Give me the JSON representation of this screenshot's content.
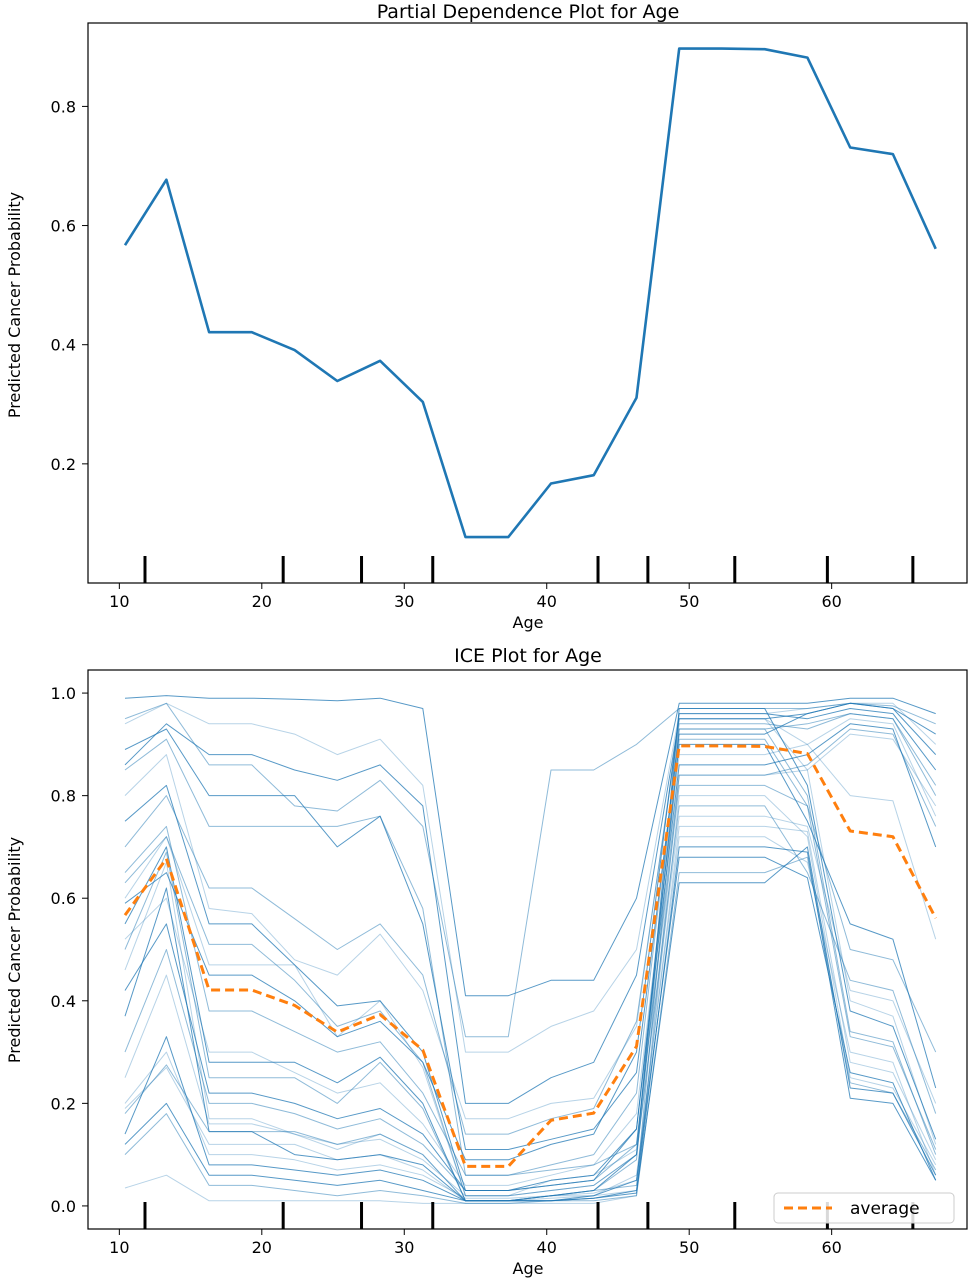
{
  "chart_data": [
    {
      "type": "line",
      "title": "Partial Dependence Plot for Age",
      "xlabel": "Age",
      "ylabel": "Predicted Cancer Probability",
      "xlim": [
        7.8,
        69.5
      ],
      "ylim": [
        0.0,
        0.94
      ],
      "xticks": [
        10,
        20,
        30,
        40,
        50,
        60
      ],
      "yticks": [
        0.2,
        0.4,
        0.6,
        0.8
      ],
      "ytick_labels": [
        "0.2",
        "0.4",
        "0.6",
        "0.8"
      ],
      "color": "#1f77b4",
      "rug": [
        11.8,
        21.5,
        27.0,
        32.0,
        43.6,
        47.1,
        53.2,
        59.7,
        65.7
      ],
      "series": [
        {
          "x": [
            10.4,
            13.3,
            16.3,
            19.3,
            22.3,
            25.3,
            28.3,
            31.3,
            34.3,
            37.3,
            40.3,
            43.3,
            46.3,
            49.3,
            52.3,
            55.3,
            58.3,
            61.3,
            64.3,
            67.3
          ],
          "y": [
            0.567,
            0.677,
            0.421,
            0.421,
            0.391,
            0.339,
            0.373,
            0.304,
            0.077,
            0.077,
            0.167,
            0.181,
            0.311,
            0.897,
            0.897,
            0.896,
            0.882,
            0.731,
            0.72,
            0.561
          ]
        }
      ]
    },
    {
      "type": "line",
      "title": "ICE Plot for Age",
      "xlabel": "Age",
      "ylabel": "Predicted Cancer Probability",
      "xlim": [
        7.8,
        69.5
      ],
      "ylim": [
        -0.045,
        1.045
      ],
      "xticks": [
        10,
        20,
        30,
        40,
        50,
        60
      ],
      "yticks": [
        0.0,
        0.2,
        0.4,
        0.6,
        0.8,
        1.0
      ],
      "ytick_labels": [
        "0.0",
        "0.2",
        "0.4",
        "0.6",
        "0.8",
        "1.0"
      ],
      "rug": [
        11.8,
        21.5,
        27.0,
        32.0,
        43.6,
        47.1,
        53.2,
        59.7,
        65.7
      ],
      "x": [
        10.4,
        13.3,
        16.3,
        19.3,
        22.3,
        25.3,
        28.3,
        31.3,
        34.3,
        37.3,
        40.3,
        43.3,
        46.3,
        49.3,
        52.3,
        55.3,
        58.3,
        61.3,
        64.3,
        67.3
      ],
      "legend": {
        "label": "average",
        "placement": "lower right"
      },
      "ice_color": "#1f77b4",
      "average_color": "#ff7f0e",
      "average": [
        0.567,
        0.677,
        0.421,
        0.421,
        0.391,
        0.339,
        0.373,
        0.304,
        0.077,
        0.077,
        0.167,
        0.181,
        0.311,
        0.897,
        0.897,
        0.896,
        0.882,
        0.731,
        0.72,
        0.561
      ],
      "ice_lines": [
        [
          0.99,
          0.995,
          0.99,
          0.99,
          0.988,
          0.985,
          0.99,
          0.97,
          0.41,
          0.41,
          0.44,
          0.44,
          0.6,
          0.98,
          0.98,
          0.98,
          0.98,
          0.99,
          0.99,
          0.96
        ],
        [
          0.95,
          0.98,
          0.86,
          0.86,
          0.78,
          0.77,
          0.83,
          0.74,
          0.33,
          0.33,
          0.85,
          0.85,
          0.9,
          0.97,
          0.97,
          0.97,
          0.97,
          0.98,
          0.975,
          0.94
        ],
        [
          0.94,
          0.98,
          0.94,
          0.94,
          0.92,
          0.88,
          0.91,
          0.82,
          0.3,
          0.3,
          0.35,
          0.38,
          0.5,
          0.96,
          0.96,
          0.96,
          0.97,
          0.98,
          0.98,
          0.9
        ],
        [
          0.89,
          0.93,
          0.8,
          0.8,
          0.8,
          0.7,
          0.76,
          0.55,
          0.11,
          0.11,
          0.13,
          0.15,
          0.26,
          0.92,
          0.92,
          0.92,
          0.96,
          0.98,
          0.97,
          0.92
        ],
        [
          0.85,
          0.91,
          0.74,
          0.74,
          0.74,
          0.74,
          0.76,
          0.58,
          0.06,
          0.06,
          0.07,
          0.08,
          0.12,
          0.84,
          0.84,
          0.84,
          0.86,
          0.93,
          0.92,
          0.74
        ],
        [
          0.8,
          0.88,
          0.58,
          0.57,
          0.48,
          0.45,
          0.53,
          0.42,
          0.17,
          0.17,
          0.2,
          0.21,
          0.35,
          0.95,
          0.95,
          0.95,
          0.9,
          0.8,
          0.79,
          0.52
        ],
        [
          0.75,
          0.82,
          0.55,
          0.55,
          0.47,
          0.39,
          0.4,
          0.3,
          0.03,
          0.03,
          0.04,
          0.05,
          0.15,
          0.9,
          0.9,
          0.9,
          0.75,
          0.55,
          0.52,
          0.23
        ],
        [
          0.63,
          0.72,
          0.51,
          0.51,
          0.44,
          0.35,
          0.38,
          0.28,
          0.02,
          0.02,
          0.03,
          0.04,
          0.1,
          0.78,
          0.78,
          0.78,
          0.65,
          0.44,
          0.42,
          0.18
        ],
        [
          0.6,
          0.72,
          0.47,
          0.47,
          0.47,
          0.33,
          0.4,
          0.27,
          0.02,
          0.02,
          0.05,
          0.06,
          0.11,
          0.95,
          0.95,
          0.95,
          0.85,
          0.4,
          0.37,
          0.12
        ],
        [
          0.55,
          0.7,
          0.28,
          0.28,
          0.28,
          0.24,
          0.29,
          0.2,
          0.01,
          0.01,
          0.02,
          0.03,
          0.1,
          0.97,
          0.97,
          0.97,
          0.82,
          0.38,
          0.35,
          0.13
        ],
        [
          0.5,
          0.69,
          0.25,
          0.25,
          0.25,
          0.2,
          0.28,
          0.19,
          0.01,
          0.01,
          0.02,
          0.03,
          0.09,
          0.93,
          0.93,
          0.93,
          0.8,
          0.34,
          0.32,
          0.1
        ],
        [
          0.46,
          0.67,
          0.17,
          0.17,
          0.14,
          0.11,
          0.14,
          0.1,
          0.01,
          0.01,
          0.02,
          0.02,
          0.06,
          0.72,
          0.72,
          0.72,
          0.67,
          0.3,
          0.28,
          0.06
        ],
        [
          0.37,
          0.62,
          0.145,
          0.145,
          0.1,
          0.09,
          0.1,
          0.08,
          0.01,
          0.01,
          0.01,
          0.02,
          0.05,
          0.68,
          0.68,
          0.68,
          0.64,
          0.26,
          0.24,
          0.05
        ],
        [
          0.18,
          0.275,
          0.145,
          0.145,
          0.145,
          0.12,
          0.14,
          0.1,
          0.01,
          0.01,
          0.02,
          0.03,
          0.04,
          0.91,
          0.91,
          0.91,
          0.78,
          0.33,
          0.31,
          0.11
        ],
        [
          0.19,
          0.27,
          0.12,
          0.12,
          0.12,
          0.09,
          0.1,
          0.07,
          0.01,
          0.01,
          0.015,
          0.02,
          0.03,
          0.8,
          0.8,
          0.8,
          0.72,
          0.25,
          0.23,
          0.08
        ],
        [
          0.14,
          0.33,
          0.08,
          0.08,
          0.07,
          0.06,
          0.07,
          0.05,
          0.01,
          0.01,
          0.01,
          0.015,
          0.025,
          0.63,
          0.63,
          0.63,
          0.7,
          0.23,
          0.22,
          0.06
        ],
        [
          0.1,
          0.18,
          0.04,
          0.04,
          0.03,
          0.02,
          0.03,
          0.02,
          0.005,
          0.005,
          0.01,
          0.01,
          0.02,
          0.65,
          0.65,
          0.65,
          0.68,
          0.24,
          0.22,
          0.07
        ],
        [
          0.035,
          0.06,
          0.01,
          0.01,
          0.01,
          0.01,
          0.01,
          0.005,
          0.005,
          0.005,
          0.005,
          0.005,
          0.02,
          0.84,
          0.84,
          0.84,
          0.85,
          0.92,
          0.91,
          0.78
        ],
        [
          0.59,
          0.65,
          0.45,
          0.45,
          0.4,
          0.33,
          0.36,
          0.28,
          0.09,
          0.09,
          0.12,
          0.14,
          0.3,
          0.96,
          0.96,
          0.96,
          0.95,
          0.97,
          0.96,
          0.85
        ],
        [
          0.65,
          0.74,
          0.38,
          0.38,
          0.34,
          0.3,
          0.32,
          0.22,
          0.06,
          0.06,
          0.08,
          0.1,
          0.22,
          0.93,
          0.93,
          0.93,
          0.94,
          0.96,
          0.95,
          0.8
        ],
        [
          0.52,
          0.6,
          0.3,
          0.3,
          0.26,
          0.22,
          0.24,
          0.16,
          0.04,
          0.04,
          0.06,
          0.08,
          0.18,
          0.88,
          0.88,
          0.88,
          0.9,
          0.95,
          0.94,
          0.76
        ],
        [
          0.42,
          0.55,
          0.22,
          0.22,
          0.2,
          0.17,
          0.19,
          0.14,
          0.03,
          0.03,
          0.05,
          0.06,
          0.15,
          0.86,
          0.86,
          0.86,
          0.88,
          0.94,
          0.93,
          0.7
        ],
        [
          0.3,
          0.5,
          0.2,
          0.2,
          0.18,
          0.15,
          0.17,
          0.12,
          0.03,
          0.03,
          0.04,
          0.05,
          0.12,
          0.82,
          0.82,
          0.82,
          0.78,
          0.5,
          0.48,
          0.3
        ],
        [
          0.25,
          0.45,
          0.16,
          0.16,
          0.14,
          0.12,
          0.13,
          0.09,
          0.02,
          0.02,
          0.03,
          0.04,
          0.1,
          0.76,
          0.76,
          0.76,
          0.74,
          0.42,
          0.4,
          0.2
        ],
        [
          0.86,
          0.94,
          0.88,
          0.88,
          0.85,
          0.83,
          0.86,
          0.78,
          0.2,
          0.2,
          0.25,
          0.28,
          0.45,
          0.95,
          0.95,
          0.95,
          0.96,
          0.98,
          0.97,
          0.88
        ],
        [
          0.7,
          0.8,
          0.62,
          0.62,
          0.56,
          0.5,
          0.55,
          0.45,
          0.14,
          0.14,
          0.17,
          0.19,
          0.36,
          0.94,
          0.94,
          0.94,
          0.93,
          0.96,
          0.95,
          0.82
        ],
        [
          0.2,
          0.3,
          0.1,
          0.1,
          0.09,
          0.07,
          0.08,
          0.06,
          0.015,
          0.015,
          0.02,
          0.025,
          0.05,
          0.74,
          0.74,
          0.74,
          0.73,
          0.28,
          0.26,
          0.09
        ],
        [
          0.12,
          0.2,
          0.06,
          0.06,
          0.05,
          0.04,
          0.05,
          0.03,
          0.01,
          0.01,
          0.01,
          0.015,
          0.03,
          0.7,
          0.7,
          0.7,
          0.69,
          0.21,
          0.2,
          0.05
        ]
      ]
    }
  ]
}
